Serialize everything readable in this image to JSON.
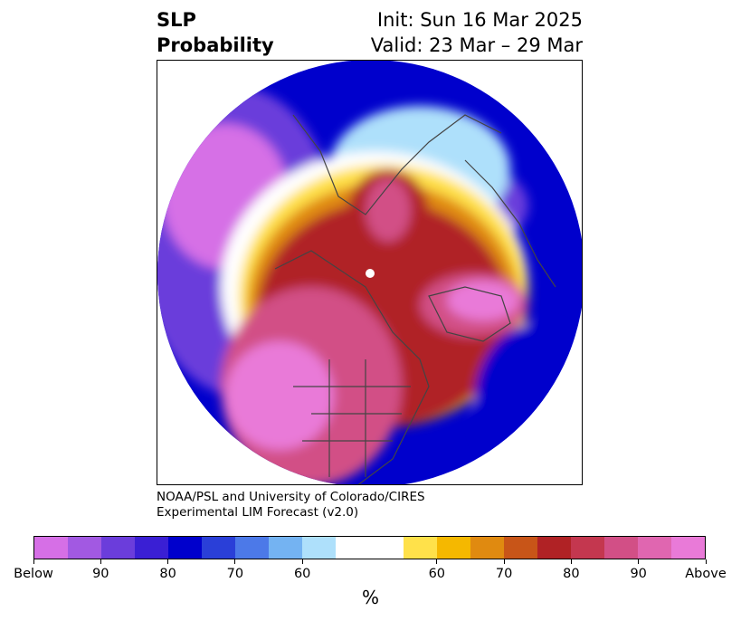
{
  "header": {
    "title_line1": "SLP",
    "title_line2": "Probability",
    "init_line": "Init: Sun 16 Mar 2025",
    "valid_line": "Valid: 23 Mar – 29 Mar"
  },
  "credit": {
    "line1": "NOAA/PSL and University of Colorado/CIRES",
    "line2": "Experimental LIM Forecast (v2.0)"
  },
  "colorbar": {
    "colors": [
      "#d66fe6",
      "#a259e2",
      "#6b3ddb",
      "#3a1fd4",
      "#0000cc",
      "#2a3fd8",
      "#4c79e8",
      "#74b3f2",
      "#aee0fb",
      "#ffffff",
      "#ffffff",
      "#ffe14a",
      "#f5b800",
      "#e08a10",
      "#c85518",
      "#b02225",
      "#c4374f",
      "#d24f86",
      "#e066b0",
      "#e97ad8"
    ],
    "tick_labels": [
      "Below",
      "90",
      "80",
      "70",
      "60",
      "60",
      "70",
      "80",
      "90",
      "Above"
    ],
    "unit": "%"
  },
  "map": {
    "colors": {
      "below_strong": "#d66fe6",
      "below_mid": "#6b3ddb",
      "below_weak": "#0000cc",
      "below_faint": "#aee0fb",
      "above_faint": "#ffe14a",
      "above_weak": "#e08a10",
      "above_mid": "#b02225",
      "above_strong": "#d24f86",
      "above_max": "#e97ad8",
      "coast": "#444444"
    }
  }
}
